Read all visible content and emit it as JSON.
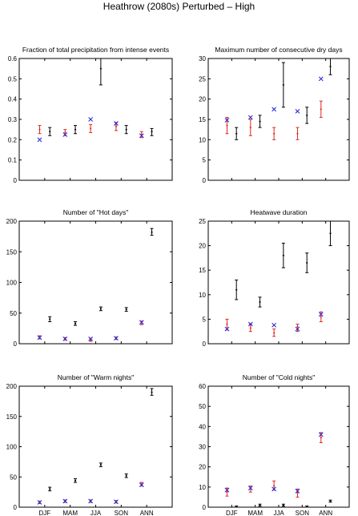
{
  "figure": {
    "title": "Heathrow (2080s) Perturbed – High",
    "colors": {
      "red": "#e0261f",
      "blue": "#2b2bd6",
      "black": "#000000"
    }
  },
  "chart_data": [
    {
      "type": "errorbar",
      "title": "Fraction of total precipitation from intense events",
      "categories": [
        "DJF",
        "MAM",
        "JJA",
        "SON",
        "ANN"
      ],
      "ylim": [
        0,
        0.6
      ],
      "yticks": [
        0,
        0.1,
        0.2,
        0.3,
        0.4,
        0.5,
        0.6
      ],
      "yticklabels": [
        "0",
        "0.1",
        "0.2",
        "0.3",
        "0.4",
        "0.5",
        "0.6"
      ],
      "show_xticklabels": false,
      "series": [
        {
          "color": "red",
          "marker": "errorbar",
          "offset": -0.2,
          "mean": [
            0.25,
            0.235,
            0.255,
            0.265,
            0.225
          ],
          "low": [
            0.23,
            0.22,
            0.235,
            0.245,
            0.21
          ],
          "high": [
            0.27,
            0.25,
            0.275,
            0.285,
            0.24
          ]
        },
        {
          "color": "blue",
          "marker": "x",
          "offset": -0.2,
          "values": [
            0.2,
            0.225,
            0.3,
            0.28,
            0.22
          ]
        },
        {
          "color": "black",
          "marker": "errorbar",
          "offset": 0.2,
          "mean": [
            0.24,
            0.25,
            0.55,
            0.25,
            0.24
          ],
          "low": [
            0.22,
            0.23,
            0.47,
            0.23,
            0.22
          ],
          "high": [
            0.26,
            0.27,
            0.6,
            0.27,
            0.255
          ]
        }
      ]
    },
    {
      "type": "errorbar",
      "title": "Maximum number of consecutive dry days",
      "categories": [
        "DJF",
        "MAM",
        "JJA",
        "SON",
        "ANN"
      ],
      "ylim": [
        0,
        30
      ],
      "yticks": [
        0,
        5,
        10,
        15,
        20,
        25,
        30
      ],
      "yticklabels": [
        "0",
        "5",
        "10",
        "15",
        "20",
        "25",
        "30"
      ],
      "show_xticklabels": false,
      "series": [
        {
          "color": "red",
          "marker": "errorbar",
          "offset": -0.2,
          "mean": [
            13.5,
            13,
            11.5,
            11.5,
            17.5
          ],
          "low": [
            11.5,
            11,
            10,
            10,
            15.5
          ],
          "high": [
            15.5,
            15,
            13,
            13,
            19.5
          ]
        },
        {
          "color": "blue",
          "marker": "x",
          "offset": -0.2,
          "values": [
            14.8,
            15.5,
            17.5,
            17,
            25
          ]
        },
        {
          "color": "black",
          "marker": "errorbar",
          "offset": 0.2,
          "mean": [
            11.5,
            14.5,
            23.5,
            16,
            28
          ]
        },
        {
          "color": "black",
          "marker": "errorbar-bounds",
          "offset": 0.2,
          "low": [
            10,
            13,
            18,
            14,
            26
          ],
          "high": [
            13,
            16,
            29,
            18,
            30
          ]
        }
      ]
    },
    {
      "type": "errorbar",
      "title": "Number of \"Hot days\"",
      "categories": [
        "DJF",
        "MAM",
        "JJA",
        "SON",
        "ANN"
      ],
      "ylim": [
        0,
        200
      ],
      "yticks": [
        0,
        50,
        100,
        150,
        200
      ],
      "yticklabels": [
        "0",
        "50",
        "100",
        "150",
        "200"
      ],
      "show_xticklabels": false,
      "series": [
        {
          "color": "red",
          "marker": "errorbar",
          "offset": -0.2,
          "mean": [
            10,
            8,
            6,
            9,
            34
          ],
          "low": [
            8,
            6,
            4,
            7,
            31
          ],
          "high": [
            13,
            10,
            9,
            11,
            37
          ]
        },
        {
          "color": "blue",
          "marker": "x",
          "offset": -0.2,
          "values": [
            10,
            8,
            8,
            9,
            35
          ]
        },
        {
          "color": "black",
          "marker": "errorbar",
          "offset": 0.2,
          "mean": [
            40,
            33,
            57,
            56,
            182
          ],
          "low": [
            36,
            30,
            54,
            53,
            177
          ],
          "high": [
            44,
            36,
            60,
            59,
            188
          ]
        }
      ]
    },
    {
      "type": "errorbar",
      "title": "Heatwave duration",
      "categories": [
        "DJF",
        "MAM",
        "JJA",
        "SON",
        "ANN"
      ],
      "ylim": [
        0,
        25
      ],
      "yticks": [
        0,
        5,
        10,
        15,
        20,
        25
      ],
      "yticklabels": [
        "0",
        "5",
        "10",
        "15",
        "20",
        "25"
      ],
      "show_xticklabels": false,
      "series": [
        {
          "color": "red",
          "marker": "errorbar",
          "offset": -0.2,
          "mean": [
            4,
            3.2,
            2.2,
            3.5,
            5.5
          ],
          "low": [
            2.8,
            2.5,
            1.5,
            2.5,
            4.5
          ],
          "high": [
            5,
            4,
            3,
            4,
            6.5
          ]
        },
        {
          "color": "blue",
          "marker": "x",
          "offset": -0.2,
          "values": [
            3,
            4,
            3.8,
            3,
            6
          ]
        },
        {
          "color": "black",
          "marker": "errorbar",
          "offset": 0.2,
          "mean": [
            11,
            8.5,
            18,
            16.5,
            22.5
          ],
          "low": [
            9,
            7.5,
            15.5,
            14.5,
            20
          ],
          "high": [
            13,
            9.5,
            20.5,
            18.5,
            25
          ]
        }
      ]
    },
    {
      "type": "errorbar",
      "title": "Number of \"Warm nights\"",
      "categories": [
        "DJF",
        "MAM",
        "JJA",
        "SON",
        "ANN"
      ],
      "ylim": [
        0,
        200
      ],
      "yticks": [
        0,
        50,
        100,
        150,
        200
      ],
      "yticklabels": [
        "0",
        "50",
        "100",
        "150",
        "200"
      ],
      "show_xticklabels": true,
      "series": [
        {
          "color": "red",
          "marker": "errorbar",
          "offset": -0.2,
          "mean": [
            8,
            10,
            10,
            9,
            38
          ],
          "low": [
            6,
            8,
            8,
            7,
            35
          ],
          "high": [
            10,
            12,
            12,
            11,
            41
          ]
        },
        {
          "color": "blue",
          "marker": "x",
          "offset": -0.2,
          "values": [
            8,
            10,
            10,
            9,
            37
          ]
        },
        {
          "color": "black",
          "marker": "errorbar",
          "offset": 0.2,
          "mean": [
            30,
            44,
            70,
            52,
            190
          ],
          "low": [
            27,
            41,
            67,
            49,
            185
          ],
          "high": [
            33,
            47,
            73,
            55,
            196
          ]
        }
      ]
    },
    {
      "type": "errorbar",
      "title": "Number of \"Cold nights\"",
      "categories": [
        "DJF",
        "MAM",
        "JJA",
        "SON",
        "ANN"
      ],
      "ylim": [
        0,
        60
      ],
      "yticks": [
        0,
        10,
        20,
        30,
        40,
        50,
        60
      ],
      "yticklabels": [
        "0",
        "10",
        "20",
        "30",
        "40",
        "50",
        "60"
      ],
      "show_xticklabels": true,
      "series": [
        {
          "color": "red",
          "marker": "errorbar",
          "offset": -0.2,
          "mean": [
            7.5,
            9,
            10.5,
            7,
            34.5
          ],
          "low": [
            5.5,
            7.5,
            8.5,
            5,
            32
          ],
          "high": [
            9.5,
            10.5,
            13,
            9,
            37
          ]
        },
        {
          "color": "blue",
          "marker": "x",
          "offset": -0.2,
          "values": [
            8.5,
            9.5,
            9,
            8,
            36
          ]
        },
        {
          "color": "black",
          "marker": "errorbar",
          "offset": 0.2,
          "mean": [
            0.3,
            1,
            1,
            0.3,
            3
          ],
          "low": [
            0,
            0.5,
            0.5,
            0,
            2.5
          ],
          "high": [
            0.6,
            1.5,
            1.5,
            0.6,
            3.5
          ]
        }
      ]
    }
  ]
}
